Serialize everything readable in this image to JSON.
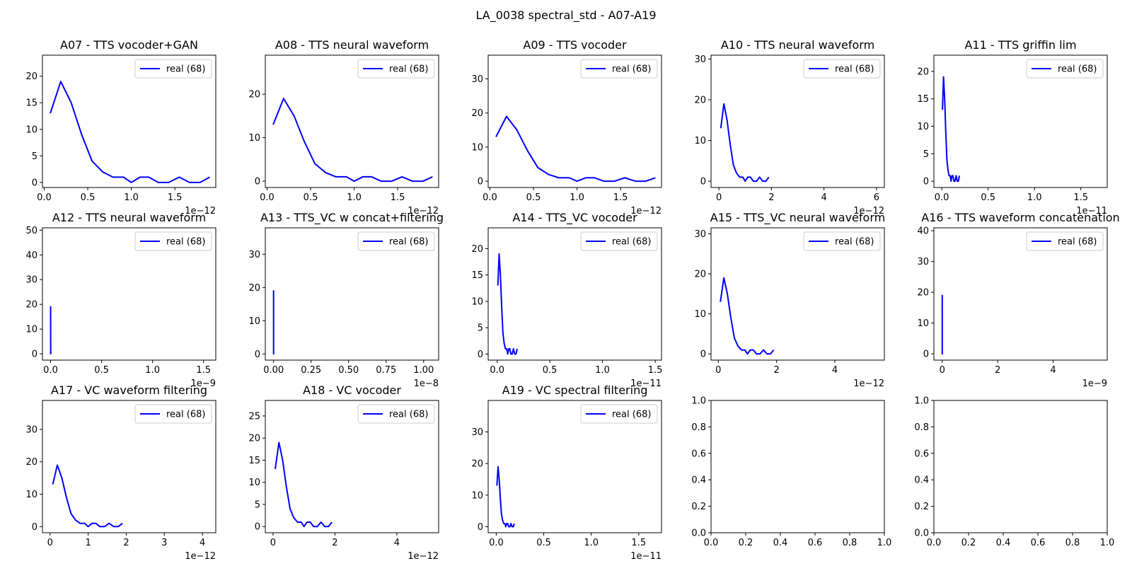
{
  "figure": {
    "title": "LA_0038 spectral_std - A07-A19"
  },
  "colors": {
    "line": "#0000ff",
    "axis": "#000000",
    "legend_border": "#cccccc"
  },
  "base_curve": {
    "x_e12": [
      0.07,
      0.19,
      0.31,
      0.43,
      0.55,
      0.67,
      0.79,
      0.91,
      1.0,
      1.1,
      1.2,
      1.31,
      1.43,
      1.55,
      1.67,
      1.79,
      1.9
    ],
    "y": [
      13,
      19,
      15,
      9,
      4,
      2,
      1,
      1,
      0,
      1,
      1,
      0,
      0,
      1,
      0,
      0,
      1
    ]
  },
  "chart_data": [
    {
      "id": "A07",
      "type": "line",
      "title": "A07 - TTS vocoder+GAN",
      "x_scale": 1,
      "xlim": [
        -0.02,
        1.97
      ],
      "ylim": [
        -0.95,
        23.95
      ],
      "xticks": [
        0.0,
        0.5,
        1.0,
        1.5
      ],
      "xtick_labels": [
        "0.0",
        "0.5",
        "1.0",
        "1.5"
      ],
      "yticks": [
        0,
        5,
        10,
        15,
        20
      ],
      "ytick_labels": [
        "0",
        "5",
        "10",
        "15",
        "20"
      ],
      "offset": "1e−12",
      "series": [
        {
          "name": "real (68)"
        }
      ]
    },
    {
      "id": "A08",
      "type": "line",
      "title": "A08 - TTS neural waveform",
      "x_scale": 1,
      "xlim": [
        -0.02,
        1.97
      ],
      "ylim": [
        -1.45,
        28.95
      ],
      "xticks": [
        0.0,
        0.5,
        1.0,
        1.5
      ],
      "xtick_labels": [
        "0.0",
        "0.5",
        "1.0",
        "1.5"
      ],
      "yticks": [
        0,
        10,
        20
      ],
      "ytick_labels": [
        "0",
        "10",
        "20"
      ],
      "offset": "1e−12",
      "series": [
        {
          "name": "real (68)"
        }
      ]
    },
    {
      "id": "A09",
      "type": "line",
      "title": "A09 - TTS vocoder",
      "x_scale": 1,
      "xlim": [
        -0.02,
        1.97
      ],
      "ylim": [
        -1.85,
        36.95
      ],
      "xticks": [
        0.0,
        0.5,
        1.0,
        1.5
      ],
      "xtick_labels": [
        "0.0",
        "0.5",
        "1.0",
        "1.5"
      ],
      "yticks": [
        0,
        10,
        20,
        30
      ],
      "ytick_labels": [
        "0",
        "10",
        "20",
        "30"
      ],
      "offset": "1e−12",
      "series": [
        {
          "name": "real (68)"
        }
      ]
    },
    {
      "id": "A10",
      "type": "line",
      "title": "A10 - TTS neural waveform",
      "x_scale": 1,
      "xlim": [
        -0.3,
        6.3
      ],
      "ylim": [
        -1.55,
        30.95
      ],
      "xticks": [
        0,
        2,
        4,
        6
      ],
      "xtick_labels": [
        "0",
        "2",
        "4",
        "6"
      ],
      "yticks": [
        0,
        10,
        20,
        30
      ],
      "ytick_labels": [
        "0",
        "10",
        "20",
        "30"
      ],
      "offset": "1e−12",
      "series": [
        {
          "name": "real (68)"
        }
      ]
    },
    {
      "id": "A11",
      "type": "line",
      "title": "A11 - TTS griffin lim",
      "x_scale": 0.1,
      "xlim": [
        -0.085,
        1.785
      ],
      "ylim": [
        -1.15,
        22.95
      ],
      "xticks": [
        0.0,
        0.5,
        1.0,
        1.5
      ],
      "xtick_labels": [
        "0.0",
        "0.5",
        "1.0",
        "1.5"
      ],
      "yticks": [
        0,
        5,
        10,
        15,
        20
      ],
      "ytick_labels": [
        "0",
        "5",
        "10",
        "15",
        "20"
      ],
      "offset": "1e−11",
      "series": [
        {
          "name": "real (68)"
        }
      ]
    },
    {
      "id": "A12",
      "type": "line",
      "title": "A12 - TTS neural waveform",
      "x_scale": 0.001,
      "xlim": [
        -0.08,
        1.62
      ],
      "ylim": [
        -2.55,
        50.95
      ],
      "xticks": [
        0.0,
        0.5,
        1.0,
        1.5
      ],
      "xtick_labels": [
        "0.0",
        "0.5",
        "1.0",
        "1.5"
      ],
      "yticks": [
        0,
        10,
        20,
        30,
        40,
        50
      ],
      "ytick_labels": [
        "0",
        "10",
        "20",
        "30",
        "40",
        "50"
      ],
      "offset": "1e−9",
      "series": [
        {
          "name": "real (68)"
        }
      ]
    },
    {
      "id": "A13",
      "type": "line",
      "title": "A13 - TTS_VC w concat+filtering",
      "x_scale": 0.0001,
      "xlim": [
        -0.055,
        1.1
      ],
      "ylim": [
        -1.85,
        37.95
      ],
      "xticks": [
        0.0,
        0.25,
        0.5,
        0.75,
        1.0
      ],
      "xtick_labels": [
        "0.00",
        "0.25",
        "0.50",
        "0.75",
        "1.00"
      ],
      "yticks": [
        0,
        10,
        20,
        30
      ],
      "ytick_labels": [
        "0",
        "10",
        "20",
        "30"
      ],
      "offset": "1e−8",
      "series": [
        {
          "name": "real (68)"
        }
      ]
    },
    {
      "id": "A14",
      "type": "line",
      "title": "A14 - TTS_VC vocoder",
      "x_scale": 0.1,
      "xlim": [
        -0.085,
        1.56
      ],
      "ylim": [
        -1.15,
        23.95
      ],
      "xticks": [
        0.0,
        0.5,
        1.0,
        1.5
      ],
      "xtick_labels": [
        "0.0",
        "0.5",
        "1.0",
        "1.5"
      ],
      "yticks": [
        0,
        5,
        10,
        15,
        20
      ],
      "ytick_labels": [
        "0",
        "5",
        "10",
        "15",
        "20"
      ],
      "offset": "1e−11",
      "series": [
        {
          "name": "real (68)"
        }
      ]
    },
    {
      "id": "A15",
      "type": "line",
      "title": "A15 - TTS_VC neural waveform",
      "x_scale": 1,
      "xlim": [
        -0.25,
        5.7
      ],
      "ylim": [
        -1.55,
        31.5
      ],
      "xticks": [
        0,
        2,
        4
      ],
      "xtick_labels": [
        "0",
        "2",
        "4"
      ],
      "yticks": [
        0,
        10,
        20,
        30
      ],
      "ytick_labels": [
        "0",
        "10",
        "20",
        "30"
      ],
      "offset": "1e−12",
      "series": [
        {
          "name": "real (68)"
        }
      ]
    },
    {
      "id": "A16",
      "type": "line",
      "title": "A16 - TTS waveform concatenation",
      "x_scale": 0.001,
      "xlim": [
        -0.3,
        5.95
      ],
      "ylim": [
        -2.05,
        40.95
      ],
      "xticks": [
        0,
        2,
        4
      ],
      "xtick_labels": [
        "0",
        "2",
        "4"
      ],
      "yticks": [
        0,
        10,
        20,
        30,
        40
      ],
      "ytick_labels": [
        "0",
        "10",
        "20",
        "30",
        "40"
      ],
      "offset": "1e−9",
      "series": [
        {
          "name": "real (68)"
        }
      ]
    },
    {
      "id": "A17",
      "type": "line",
      "title": "A17 - VC waveform filtering",
      "x_scale": 1,
      "xlim": [
        -0.2,
        4.35
      ],
      "ylim": [
        -1.9,
        38.95
      ],
      "xticks": [
        0,
        1,
        2,
        3,
        4
      ],
      "xtick_labels": [
        "0",
        "1",
        "2",
        "3",
        "4"
      ],
      "yticks": [
        0,
        10,
        20,
        30
      ],
      "ytick_labels": [
        "0",
        "10",
        "20",
        "30"
      ],
      "offset": "1e−12",
      "series": [
        {
          "name": "real (68)"
        }
      ]
    },
    {
      "id": "A18",
      "type": "line",
      "title": "A18 - VC vocoder",
      "x_scale": 1,
      "xlim": [
        -0.25,
        5.35
      ],
      "ylim": [
        -1.4,
        28.5
      ],
      "xticks": [
        0,
        2,
        4
      ],
      "xtick_labels": [
        "0",
        "2",
        "4"
      ],
      "yticks": [
        0,
        5,
        10,
        15,
        20,
        25
      ],
      "ytick_labels": [
        "0",
        "5",
        "10",
        "15",
        "20",
        "25"
      ],
      "offset": "1e−12",
      "series": [
        {
          "name": "real (68)"
        }
      ]
    },
    {
      "id": "A19",
      "type": "line",
      "title": "A19 - VC spectral filtering",
      "x_scale": 0.1,
      "xlim": [
        -0.085,
        1.74
      ],
      "ylim": [
        -1.9,
        39.95
      ],
      "xticks": [
        0.0,
        0.5,
        1.0,
        1.5
      ],
      "xtick_labels": [
        "0.0",
        "0.5",
        "1.0",
        "1.5"
      ],
      "yticks": [
        0,
        10,
        20,
        30
      ],
      "ytick_labels": [
        "0",
        "10",
        "20",
        "30"
      ],
      "offset": "1e−11",
      "series": [
        {
          "name": "real (68)"
        }
      ]
    },
    {
      "id": "empty1",
      "type": "line",
      "title": "",
      "empty": true,
      "xlim": [
        0,
        1
      ],
      "ylim": [
        0,
        1
      ],
      "xticks": [
        0,
        0.2,
        0.4,
        0.6,
        0.8,
        1.0
      ],
      "xtick_labels": [
        "0.0",
        "0.2",
        "0.4",
        "0.6",
        "0.8",
        "1.0"
      ],
      "yticks": [
        0,
        0.2,
        0.4,
        0.6,
        0.8,
        1.0
      ],
      "ytick_labels": [
        "0.0",
        "0.2",
        "0.4",
        "0.6",
        "0.8",
        "1.0"
      ],
      "offset": "",
      "series": []
    },
    {
      "id": "empty2",
      "type": "line",
      "title": "",
      "empty": true,
      "xlim": [
        0,
        1
      ],
      "ylim": [
        0,
        1
      ],
      "xticks": [
        0,
        0.2,
        0.4,
        0.6,
        0.8,
        1.0
      ],
      "xtick_labels": [
        "0.0",
        "0.2",
        "0.4",
        "0.6",
        "0.8",
        "1.0"
      ],
      "yticks": [
        0,
        0.2,
        0.4,
        0.6,
        0.8,
        1.0
      ],
      "ytick_labels": [
        "0.0",
        "0.2",
        "0.4",
        "0.6",
        "0.8",
        "1.0"
      ],
      "offset": "",
      "series": []
    }
  ]
}
